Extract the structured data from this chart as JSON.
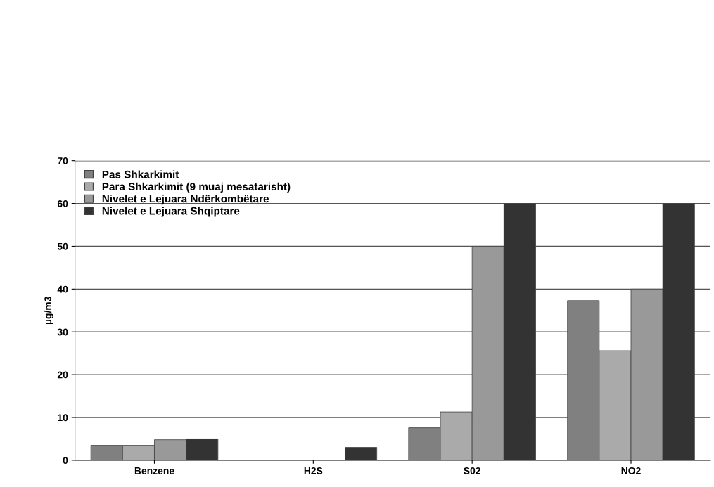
{
  "chart_data": {
    "type": "bar",
    "ylabel": "µg/m3",
    "categories": [
      "Benzene",
      "H2S",
      "S02",
      "NO2"
    ],
    "series": [
      {
        "name": "Pas Shkarkimit",
        "color": "#808080",
        "values": [
          3.5,
          null,
          7.6,
          37.3
        ]
      },
      {
        "name": "Para Shkarkimit (9 muaj mesatarisht)",
        "color": "#aaaaaa",
        "values": [
          3.5,
          null,
          11.3,
          25.6
        ]
      },
      {
        "name": "Nivelet e Lejuara Ndërkombëtare",
        "color": "#999999",
        "values": [
          4.8,
          null,
          50,
          40
        ]
      },
      {
        "name": "Nivelet e Lejuara Shqiptare",
        "color": "#333333",
        "values": [
          5,
          3,
          60,
          60
        ]
      }
    ],
    "ylim": [
      0,
      70
    ],
    "yticks": [
      0,
      10,
      20,
      30,
      40,
      50,
      60,
      70
    ],
    "grid": "y",
    "legend": "top left"
  }
}
